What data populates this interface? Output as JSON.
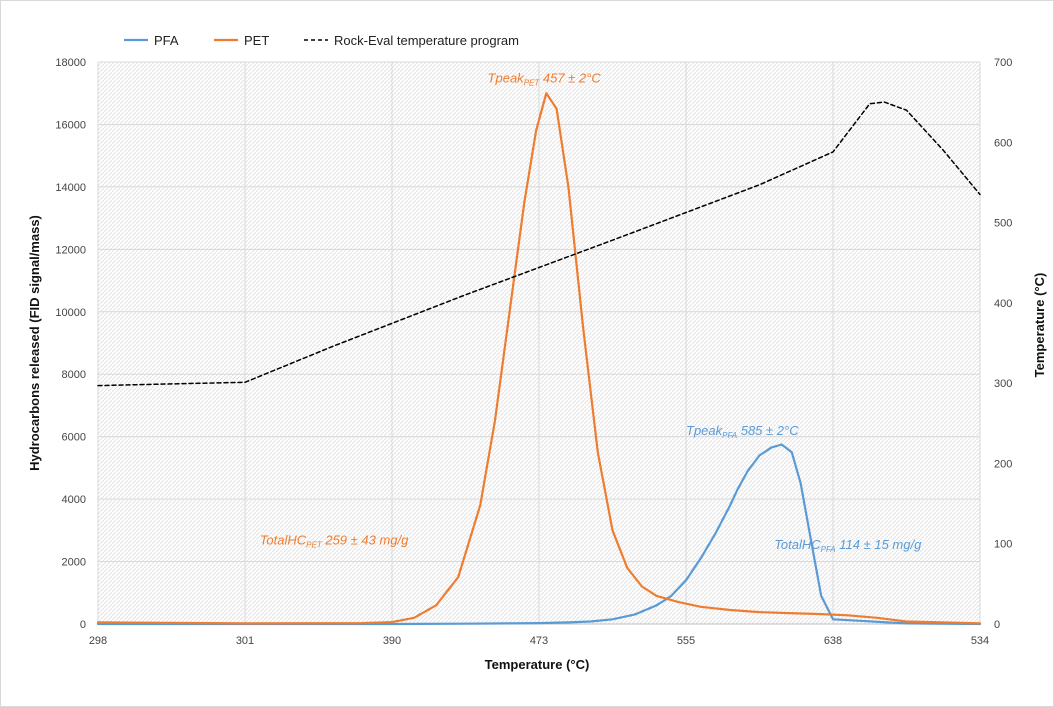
{
  "chart_data": {
    "type": "line",
    "xlabel": "Temperature (°C)",
    "ylabel": "Hydrocarbons released (FID signal/mass)",
    "y2label": "Temperature (°C)",
    "ylim": [
      0,
      18000
    ],
    "y2lim": [
      0,
      700
    ],
    "yticks": [
      0,
      2000,
      4000,
      6000,
      8000,
      10000,
      12000,
      14000,
      16000,
      18000
    ],
    "y2ticks": [
      0,
      100,
      200,
      300,
      400,
      500,
      600,
      700
    ],
    "xtick_labels": [
      "298",
      "301",
      "390",
      "473",
      "555",
      "638",
      "534"
    ],
    "xlim": [
      0,
      6
    ],
    "grid": true,
    "legend_position": "top",
    "series": [
      {
        "name": "PFA",
        "color": "#5b9bd5",
        "style": "solid",
        "axis": "left",
        "x": [
          0,
          1,
          2,
          2.5,
          2.8,
          3.0,
          3.2,
          3.35,
          3.5,
          3.65,
          3.8,
          3.9,
          4.0,
          4.1,
          4.2,
          4.3,
          4.35,
          4.42,
          4.5,
          4.58,
          4.65,
          4.72,
          4.78,
          4.85,
          4.92,
          5.0,
          5.5,
          6.0
        ],
        "y": [
          0,
          0,
          0,
          10,
          20,
          30,
          50,
          80,
          150,
          300,
          600,
          900,
          1400,
          2100,
          2900,
          3800,
          4300,
          4900,
          5400,
          5650,
          5750,
          5500,
          4500,
          2700,
          900,
          150,
          20,
          0
        ]
      },
      {
        "name": "PET",
        "color": "#ed7d31",
        "style": "solid",
        "axis": "left",
        "x": [
          0,
          1,
          1.8,
          2.0,
          2.15,
          2.3,
          2.45,
          2.6,
          2.7,
          2.8,
          2.9,
          2.98,
          3.05,
          3.12,
          3.2,
          3.3,
          3.4,
          3.5,
          3.6,
          3.7,
          3.8,
          3.95,
          4.1,
          4.3,
          4.5,
          4.7,
          4.9,
          5.1,
          5.3,
          5.5,
          6.0
        ],
        "y": [
          50,
          20,
          30,
          60,
          200,
          600,
          1500,
          3800,
          6500,
          10000,
          13500,
          15800,
          17000,
          16500,
          14000,
          9500,
          5500,
          3000,
          1800,
          1200,
          900,
          700,
          550,
          450,
          380,
          350,
          320,
          280,
          200,
          80,
          20
        ]
      },
      {
        "name": "Rock-Eval temperature program",
        "color": "#000000",
        "style": "dashed",
        "axis": "right",
        "x": [
          0,
          0.5,
          1,
          1.6,
          2.5,
          3.5,
          4.5,
          5.0,
          5.25,
          5.35,
          5.5,
          5.75,
          6.0
        ],
        "y": [
          297,
          299,
          301,
          346,
          410,
          478,
          547,
          588,
          648,
          650,
          640,
          590,
          535
        ]
      }
    ],
    "annotations": [
      {
        "prefix": "Tpeak",
        "sub": "PET",
        "suffix": " 457 ± 2°C",
        "color": "#ed7d31",
        "x": 2.65,
        "y": 17350
      },
      {
        "prefix": "Tpeak",
        "sub": "PFA",
        "suffix": " 585 ± 2°C",
        "color": "#5b9bd5",
        "x": 4.0,
        "y": 6050
      },
      {
        "prefix": "TotalHC",
        "sub": "PET",
        "suffix": " 259 ± 43 mg/g",
        "color": "#ed7d31",
        "x": 1.1,
        "y": 2550
      },
      {
        "prefix": "TotalHC",
        "sub": "PFA",
        "suffix": " 114 ± 15 mg/g",
        "color": "#5b9bd5",
        "x": 4.6,
        "y": 2400
      }
    ]
  }
}
